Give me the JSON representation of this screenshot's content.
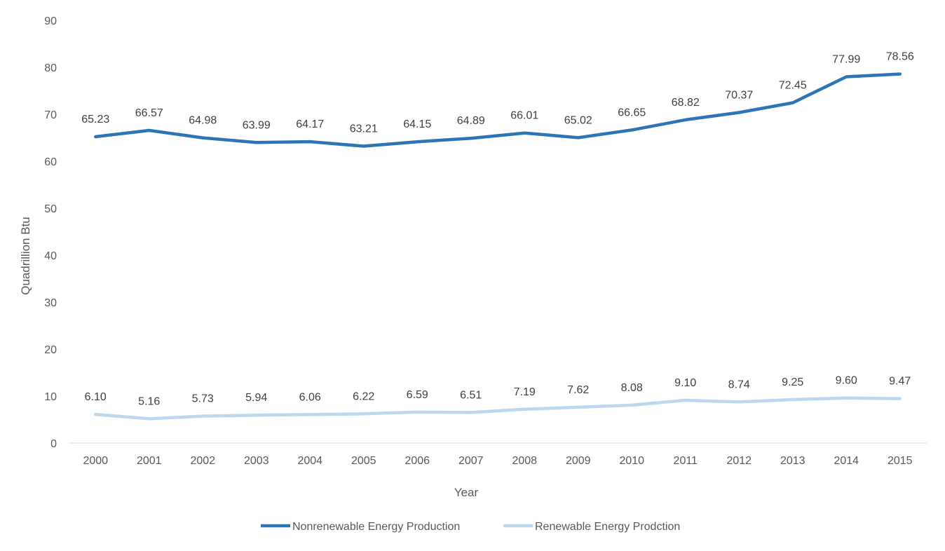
{
  "chart_data": {
    "type": "line",
    "title": "",
    "xlabel": "Year",
    "ylabel": "Quadrillion Btu",
    "ylim": [
      0,
      90
    ],
    "yticks": [
      0,
      10,
      20,
      30,
      40,
      50,
      60,
      70,
      80,
      90
    ],
    "grid": false,
    "legend_position": "bottom",
    "categories": [
      "2000",
      "2001",
      "2002",
      "2003",
      "2004",
      "2005",
      "2006",
      "2007",
      "2008",
      "2009",
      "2010",
      "2011",
      "2012",
      "2013",
      "2014",
      "2015"
    ],
    "series": [
      {
        "name": "Nonrenewable Energy Production",
        "color": "#2E75B6",
        "values": [
          65.23,
          66.57,
          64.98,
          63.99,
          64.17,
          63.21,
          64.15,
          64.89,
          66.01,
          65.02,
          66.65,
          68.82,
          70.37,
          72.45,
          77.99,
          78.56
        ],
        "labels": [
          "65.23",
          "66.57",
          "64.98",
          "63.99",
          "64.17",
          "63.21",
          "64.15",
          "64.89",
          "66.01",
          "65.02",
          "66.65",
          "68.82",
          "70.37",
          "72.45",
          "77.99",
          "78.56"
        ]
      },
      {
        "name": "Renewable Energy Prodction",
        "color": "#BDD7EE",
        "values": [
          6.1,
          5.16,
          5.73,
          5.94,
          6.06,
          6.22,
          6.59,
          6.51,
          7.19,
          7.62,
          8.08,
          9.1,
          8.74,
          9.25,
          9.6,
          9.47
        ],
        "labels": [
          "6.10",
          "5.16",
          "5.73",
          "5.94",
          "6.06",
          "6.22",
          "6.59",
          "6.51",
          "7.19",
          "7.62",
          "8.08",
          "9.10",
          "8.74",
          "9.25",
          "9.60",
          "9.47"
        ]
      }
    ]
  }
}
